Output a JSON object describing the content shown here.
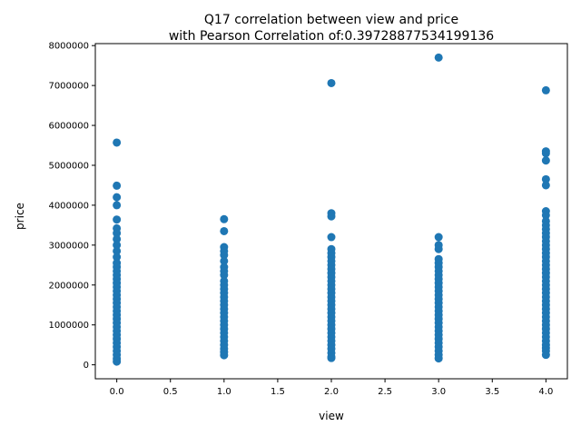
{
  "chart_data": {
    "type": "scatter",
    "title_line1": "Q17 correlation between view and price",
    "title_line2": "with Pearson Correlation of:0.39728877534199136",
    "xlabel": "view",
    "ylabel": "price",
    "xlim": [
      -0.2,
      4.2
    ],
    "ylim": [
      -350000,
      8050000
    ],
    "xticks": [
      0.0,
      0.5,
      1.0,
      1.5,
      2.0,
      2.5,
      3.0,
      3.5,
      4.0
    ],
    "xtick_labels": [
      "0.0",
      "0.5",
      "1.0",
      "1.5",
      "2.0",
      "2.5",
      "3.0",
      "3.5",
      "4.0"
    ],
    "yticks": [
      0,
      1000000,
      2000000,
      3000000,
      4000000,
      5000000,
      6000000,
      7000000,
      8000000
    ],
    "ytick_labels": [
      "0",
      "1000000",
      "2000000",
      "3000000",
      "4000000",
      "5000000",
      "6000000",
      "7000000",
      "8000000"
    ],
    "grid": false,
    "color": "#1f77b4",
    "series": [
      {
        "values": [
          {
            "x": 0,
            "y": 5570000
          },
          {
            "x": 0,
            "y": 4490000
          },
          {
            "x": 0,
            "y": 4200000
          },
          {
            "x": 0,
            "y": 4000000
          },
          {
            "x": 0,
            "y": 3640000
          },
          {
            "x": 0,
            "y": 3420000
          },
          {
            "x": 0,
            "y": 3300000
          },
          {
            "x": 0,
            "y": 3150000
          },
          {
            "x": 0,
            "y": 3000000
          },
          {
            "x": 0,
            "y": 2850000
          },
          {
            "x": 0,
            "y": 2700000
          },
          {
            "x": 0,
            "y": 2550000
          },
          {
            "x": 0,
            "y": 2450000
          },
          {
            "x": 0,
            "y": 2350000
          },
          {
            "x": 0,
            "y": 2250000
          },
          {
            "x": 0,
            "y": 2150000
          },
          {
            "x": 0,
            "y": 2050000
          },
          {
            "x": 0,
            "y": 1950000
          },
          {
            "x": 0,
            "y": 1850000
          },
          {
            "x": 0,
            "y": 1750000
          },
          {
            "x": 0,
            "y": 1650000
          },
          {
            "x": 0,
            "y": 1550000
          },
          {
            "x": 0,
            "y": 1450000
          },
          {
            "x": 0,
            "y": 1350000
          },
          {
            "x": 0,
            "y": 1250000
          },
          {
            "x": 0,
            "y": 1150000
          },
          {
            "x": 0,
            "y": 1050000
          },
          {
            "x": 0,
            "y": 950000
          },
          {
            "x": 0,
            "y": 850000
          },
          {
            "x": 0,
            "y": 750000
          },
          {
            "x": 0,
            "y": 650000
          },
          {
            "x": 0,
            "y": 550000
          },
          {
            "x": 0,
            "y": 450000
          },
          {
            "x": 0,
            "y": 350000
          },
          {
            "x": 0,
            "y": 250000
          },
          {
            "x": 0,
            "y": 150000
          },
          {
            "x": 0,
            "y": 80000
          },
          {
            "x": 1,
            "y": 3650000
          },
          {
            "x": 1,
            "y": 3350000
          },
          {
            "x": 1,
            "y": 2950000
          },
          {
            "x": 1,
            "y": 2850000
          },
          {
            "x": 1,
            "y": 2750000
          },
          {
            "x": 1,
            "y": 2600000
          },
          {
            "x": 1,
            "y": 2450000
          },
          {
            "x": 1,
            "y": 2350000
          },
          {
            "x": 1,
            "y": 2250000
          },
          {
            "x": 1,
            "y": 2100000
          },
          {
            "x": 1,
            "y": 2000000
          },
          {
            "x": 1,
            "y": 1900000
          },
          {
            "x": 1,
            "y": 1800000
          },
          {
            "x": 1,
            "y": 1700000
          },
          {
            "x": 1,
            "y": 1600000
          },
          {
            "x": 1,
            "y": 1500000
          },
          {
            "x": 1,
            "y": 1400000
          },
          {
            "x": 1,
            "y": 1300000
          },
          {
            "x": 1,
            "y": 1200000
          },
          {
            "x": 1,
            "y": 1100000
          },
          {
            "x": 1,
            "y": 1000000
          },
          {
            "x": 1,
            "y": 900000
          },
          {
            "x": 1,
            "y": 800000
          },
          {
            "x": 1,
            "y": 700000
          },
          {
            "x": 1,
            "y": 600000
          },
          {
            "x": 1,
            "y": 500000
          },
          {
            "x": 1,
            "y": 400000
          },
          {
            "x": 1,
            "y": 320000
          },
          {
            "x": 1,
            "y": 240000
          },
          {
            "x": 2,
            "y": 7060000
          },
          {
            "x": 2,
            "y": 3800000
          },
          {
            "x": 2,
            "y": 3720000
          },
          {
            "x": 2,
            "y": 3200000
          },
          {
            "x": 2,
            "y": 2900000
          },
          {
            "x": 2,
            "y": 2800000
          },
          {
            "x": 2,
            "y": 2700000
          },
          {
            "x": 2,
            "y": 2600000
          },
          {
            "x": 2,
            "y": 2500000
          },
          {
            "x": 2,
            "y": 2400000
          },
          {
            "x": 2,
            "y": 2300000
          },
          {
            "x": 2,
            "y": 2200000
          },
          {
            "x": 2,
            "y": 2100000
          },
          {
            "x": 2,
            "y": 2000000
          },
          {
            "x": 2,
            "y": 1900000
          },
          {
            "x": 2,
            "y": 1800000
          },
          {
            "x": 2,
            "y": 1700000
          },
          {
            "x": 2,
            "y": 1600000
          },
          {
            "x": 2,
            "y": 1500000
          },
          {
            "x": 2,
            "y": 1400000
          },
          {
            "x": 2,
            "y": 1300000
          },
          {
            "x": 2,
            "y": 1200000
          },
          {
            "x": 2,
            "y": 1100000
          },
          {
            "x": 2,
            "y": 1000000
          },
          {
            "x": 2,
            "y": 900000
          },
          {
            "x": 2,
            "y": 800000
          },
          {
            "x": 2,
            "y": 700000
          },
          {
            "x": 2,
            "y": 600000
          },
          {
            "x": 2,
            "y": 500000
          },
          {
            "x": 2,
            "y": 400000
          },
          {
            "x": 2,
            "y": 300000
          },
          {
            "x": 2,
            "y": 200000
          },
          {
            "x": 2,
            "y": 170000
          },
          {
            "x": 3,
            "y": 7700000
          },
          {
            "x": 3,
            "y": 3200000
          },
          {
            "x": 3,
            "y": 3000000
          },
          {
            "x": 3,
            "y": 2900000
          },
          {
            "x": 3,
            "y": 2650000
          },
          {
            "x": 3,
            "y": 2550000
          },
          {
            "x": 3,
            "y": 2450000
          },
          {
            "x": 3,
            "y": 2350000
          },
          {
            "x": 3,
            "y": 2250000
          },
          {
            "x": 3,
            "y": 2150000
          },
          {
            "x": 3,
            "y": 2050000
          },
          {
            "x": 3,
            "y": 1950000
          },
          {
            "x": 3,
            "y": 1850000
          },
          {
            "x": 3,
            "y": 1750000
          },
          {
            "x": 3,
            "y": 1650000
          },
          {
            "x": 3,
            "y": 1550000
          },
          {
            "x": 3,
            "y": 1450000
          },
          {
            "x": 3,
            "y": 1350000
          },
          {
            "x": 3,
            "y": 1250000
          },
          {
            "x": 3,
            "y": 1150000
          },
          {
            "x": 3,
            "y": 1050000
          },
          {
            "x": 3,
            "y": 950000
          },
          {
            "x": 3,
            "y": 850000
          },
          {
            "x": 3,
            "y": 750000
          },
          {
            "x": 3,
            "y": 650000
          },
          {
            "x": 3,
            "y": 550000
          },
          {
            "x": 3,
            "y": 450000
          },
          {
            "x": 3,
            "y": 350000
          },
          {
            "x": 3,
            "y": 250000
          },
          {
            "x": 3,
            "y": 160000
          },
          {
            "x": 4,
            "y": 6880000
          },
          {
            "x": 4,
            "y": 5350000
          },
          {
            "x": 4,
            "y": 5300000
          },
          {
            "x": 4,
            "y": 5120000
          },
          {
            "x": 4,
            "y": 4650000
          },
          {
            "x": 4,
            "y": 4500000
          },
          {
            "x": 4,
            "y": 3850000
          },
          {
            "x": 4,
            "y": 3750000
          },
          {
            "x": 4,
            "y": 3600000
          },
          {
            "x": 4,
            "y": 3500000
          },
          {
            "x": 4,
            "y": 3400000
          },
          {
            "x": 4,
            "y": 3300000
          },
          {
            "x": 4,
            "y": 3200000
          },
          {
            "x": 4,
            "y": 3100000
          },
          {
            "x": 4,
            "y": 3000000
          },
          {
            "x": 4,
            "y": 2900000
          },
          {
            "x": 4,
            "y": 2800000
          },
          {
            "x": 4,
            "y": 2700000
          },
          {
            "x": 4,
            "y": 2600000
          },
          {
            "x": 4,
            "y": 2500000
          },
          {
            "x": 4,
            "y": 2400000
          },
          {
            "x": 4,
            "y": 2300000
          },
          {
            "x": 4,
            "y": 2200000
          },
          {
            "x": 4,
            "y": 2100000
          },
          {
            "x": 4,
            "y": 2000000
          },
          {
            "x": 4,
            "y": 1900000
          },
          {
            "x": 4,
            "y": 1800000
          },
          {
            "x": 4,
            "y": 1700000
          },
          {
            "x": 4,
            "y": 1600000
          },
          {
            "x": 4,
            "y": 1500000
          },
          {
            "x": 4,
            "y": 1400000
          },
          {
            "x": 4,
            "y": 1300000
          },
          {
            "x": 4,
            "y": 1200000
          },
          {
            "x": 4,
            "y": 1100000
          },
          {
            "x": 4,
            "y": 1000000
          },
          {
            "x": 4,
            "y": 900000
          },
          {
            "x": 4,
            "y": 800000
          },
          {
            "x": 4,
            "y": 700000
          },
          {
            "x": 4,
            "y": 600000
          },
          {
            "x": 4,
            "y": 500000
          },
          {
            "x": 4,
            "y": 420000
          },
          {
            "x": 4,
            "y": 350000
          },
          {
            "x": 4,
            "y": 250000
          }
        ]
      }
    ]
  }
}
